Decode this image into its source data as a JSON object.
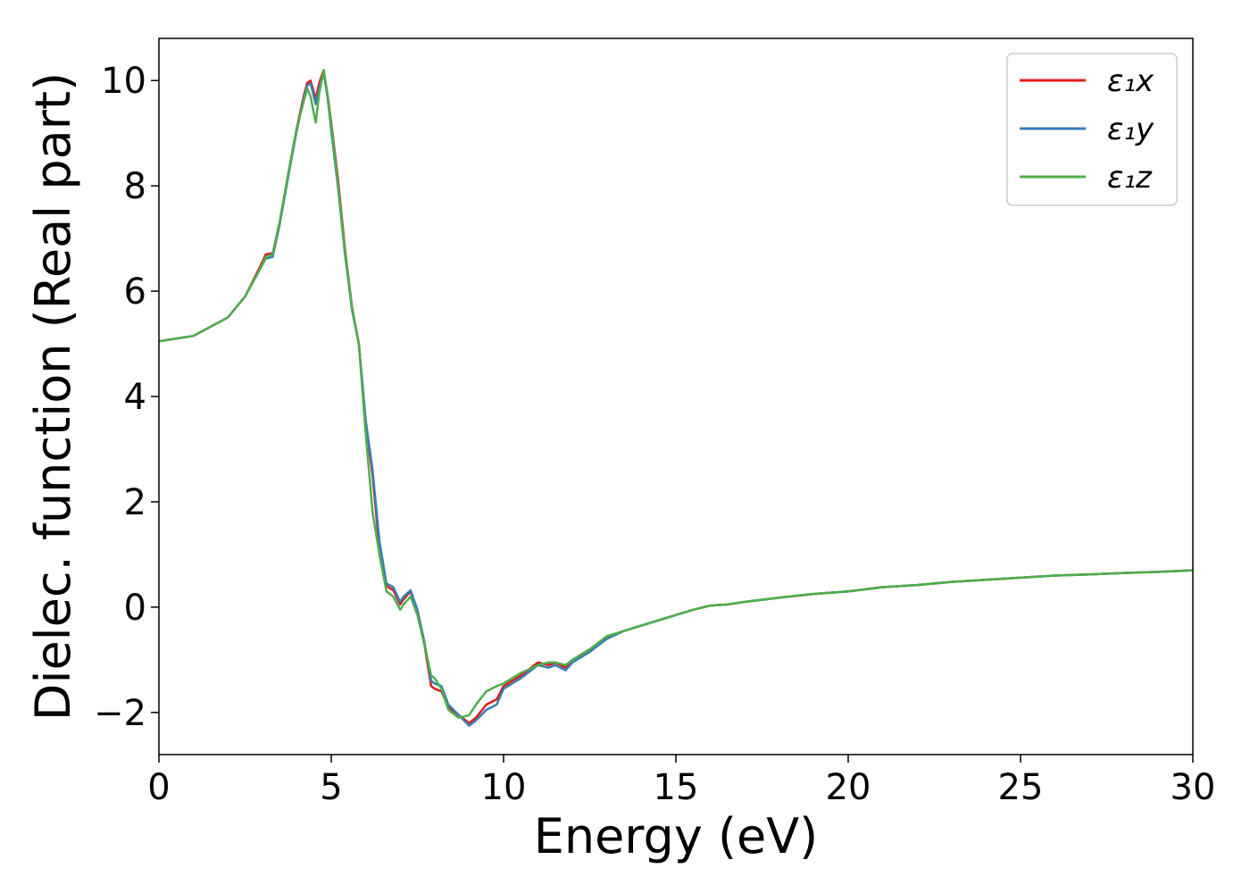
{
  "chart_data": {
    "type": "line",
    "xlabel": "Energy (eV)",
    "ylabel": "Dielec. function (Real part)",
    "xlim": [
      0,
      30
    ],
    "ylim": [
      -2.8,
      10.8
    ],
    "x_ticks": [
      0,
      5,
      10,
      15,
      20,
      25,
      30
    ],
    "x_tick_labels": [
      "0",
      "5",
      "10",
      "15",
      "20",
      "25",
      "30"
    ],
    "y_ticks": [
      -2,
      0,
      2,
      4,
      6,
      8,
      10
    ],
    "y_tick_labels": [
      "−2",
      "0",
      "2",
      "4",
      "6",
      "8",
      "10"
    ],
    "grid": false,
    "legend_position": "top-right",
    "series": [
      {
        "name": "ε₁x",
        "color": "#e41a1c",
        "x": [
          0,
          1,
          2,
          2.5,
          3,
          3.1,
          3.3,
          3.5,
          3.8,
          4.0,
          4.2,
          4.3,
          4.4,
          4.55,
          4.65,
          4.78,
          4.9,
          5.0,
          5.2,
          5.4,
          5.6,
          5.8,
          6.0,
          6.2,
          6.4,
          6.6,
          6.8,
          7.0,
          7.1,
          7.3,
          7.5,
          7.7,
          7.9,
          8.0,
          8.2,
          8.4,
          8.7,
          9.0,
          9.2,
          9.5,
          9.8,
          10.0,
          10.5,
          11.0,
          11.3,
          11.5,
          11.8,
          12.0,
          12.5,
          13.0,
          13.5,
          14.0,
          14.5,
          15.0,
          15.5,
          16.0,
          16.5,
          17.0,
          18.0,
          19.0,
          20.0,
          21.0,
          22.0,
          23.0,
          24.0,
          25.0,
          26.0,
          27.0,
          28.0,
          29.0,
          30.0
        ],
        "values": [
          5.05,
          5.15,
          5.5,
          5.9,
          6.55,
          6.7,
          6.72,
          7.3,
          8.4,
          9.1,
          9.7,
          9.95,
          10.0,
          9.65,
          9.95,
          10.2,
          9.7,
          9.2,
          8.1,
          6.8,
          5.7,
          5.0,
          3.5,
          2.5,
          1.1,
          0.4,
          0.32,
          0.05,
          0.15,
          0.3,
          -0.1,
          -0.7,
          -1.5,
          -1.55,
          -1.6,
          -1.9,
          -2.05,
          -2.2,
          -2.1,
          -1.85,
          -1.75,
          -1.5,
          -1.3,
          -1.05,
          -1.1,
          -1.05,
          -1.15,
          -1.0,
          -0.8,
          -0.6,
          -0.45,
          -0.35,
          -0.25,
          -0.15,
          -0.05,
          0.03,
          0.05,
          0.1,
          0.18,
          0.25,
          0.3,
          0.38,
          0.42,
          0.48,
          0.52,
          0.56,
          0.6,
          0.62,
          0.65,
          0.67,
          0.7
        ]
      },
      {
        "name": "ε₁y",
        "color": "#377eb8",
        "x": [
          0,
          1,
          2,
          2.5,
          3,
          3.1,
          3.3,
          3.5,
          3.8,
          4.0,
          4.2,
          4.3,
          4.4,
          4.55,
          4.65,
          4.78,
          4.9,
          5.0,
          5.2,
          5.4,
          5.6,
          5.8,
          6.0,
          6.2,
          6.4,
          6.6,
          6.8,
          7.0,
          7.1,
          7.3,
          7.5,
          7.7,
          7.9,
          8.0,
          8.2,
          8.4,
          8.7,
          9.0,
          9.2,
          9.5,
          9.8,
          10.0,
          10.5,
          11.0,
          11.3,
          11.5,
          11.8,
          12.0,
          12.5,
          13.0,
          13.5,
          14.0,
          14.5,
          15.0,
          15.5,
          16.0,
          16.5,
          17.0,
          18.0,
          19.0,
          20.0,
          21.0,
          22.0,
          23.0,
          24.0,
          25.0,
          26.0,
          27.0,
          28.0,
          29.0,
          30.0
        ],
        "values": [
          5.05,
          5.15,
          5.5,
          5.9,
          6.5,
          6.62,
          6.65,
          7.25,
          8.35,
          9.05,
          9.65,
          9.9,
          9.95,
          9.55,
          9.85,
          10.15,
          9.65,
          9.05,
          7.95,
          6.7,
          5.65,
          5.0,
          3.55,
          2.6,
          1.25,
          0.45,
          0.38,
          0.1,
          0.2,
          0.32,
          -0.05,
          -0.65,
          -1.4,
          -1.45,
          -1.5,
          -1.85,
          -2.05,
          -2.25,
          -2.15,
          -1.95,
          -1.85,
          -1.55,
          -1.35,
          -1.1,
          -1.15,
          -1.1,
          -1.2,
          -1.05,
          -0.85,
          -0.6,
          -0.45,
          -0.35,
          -0.25,
          -0.15,
          -0.05,
          0.03,
          0.05,
          0.1,
          0.18,
          0.25,
          0.3,
          0.38,
          0.42,
          0.48,
          0.52,
          0.56,
          0.6,
          0.62,
          0.65,
          0.67,
          0.7
        ]
      },
      {
        "name": "ε₁z",
        "color": "#4daf4a",
        "x": [
          0,
          1,
          2,
          2.5,
          3,
          3.1,
          3.3,
          3.5,
          3.8,
          4.0,
          4.2,
          4.3,
          4.4,
          4.55,
          4.65,
          4.78,
          4.9,
          5.0,
          5.2,
          5.4,
          5.6,
          5.8,
          6.0,
          6.2,
          6.4,
          6.6,
          6.8,
          7.0,
          7.1,
          7.3,
          7.5,
          7.7,
          7.9,
          8.0,
          8.2,
          8.4,
          8.7,
          9.0,
          9.2,
          9.5,
          9.8,
          10.0,
          10.5,
          11.0,
          11.3,
          11.5,
          11.8,
          12.0,
          12.5,
          13.0,
          13.5,
          14.0,
          14.5,
          15.0,
          15.5,
          16.0,
          16.5,
          17.0,
          18.0,
          19.0,
          20.0,
          21.0,
          22.0,
          23.0,
          24.0,
          25.0,
          26.0,
          27.0,
          28.0,
          29.0,
          30.0
        ],
        "values": [
          5.05,
          5.15,
          5.5,
          5.9,
          6.5,
          6.65,
          6.7,
          7.3,
          8.4,
          9.1,
          9.6,
          9.85,
          9.7,
          9.2,
          9.75,
          10.2,
          9.7,
          9.15,
          8.0,
          6.75,
          5.7,
          5.0,
          3.3,
          1.8,
          1.0,
          0.3,
          0.2,
          -0.05,
          0.05,
          0.2,
          -0.15,
          -0.7,
          -1.3,
          -1.35,
          -1.55,
          -1.95,
          -2.1,
          -2.05,
          -1.85,
          -1.6,
          -1.5,
          -1.45,
          -1.25,
          -1.1,
          -1.05,
          -1.05,
          -1.1,
          -1.0,
          -0.8,
          -0.55,
          -0.45,
          -0.35,
          -0.25,
          -0.15,
          -0.05,
          0.03,
          0.05,
          0.1,
          0.18,
          0.25,
          0.3,
          0.38,
          0.42,
          0.48,
          0.52,
          0.56,
          0.6,
          0.62,
          0.65,
          0.67,
          0.7
        ]
      }
    ]
  }
}
